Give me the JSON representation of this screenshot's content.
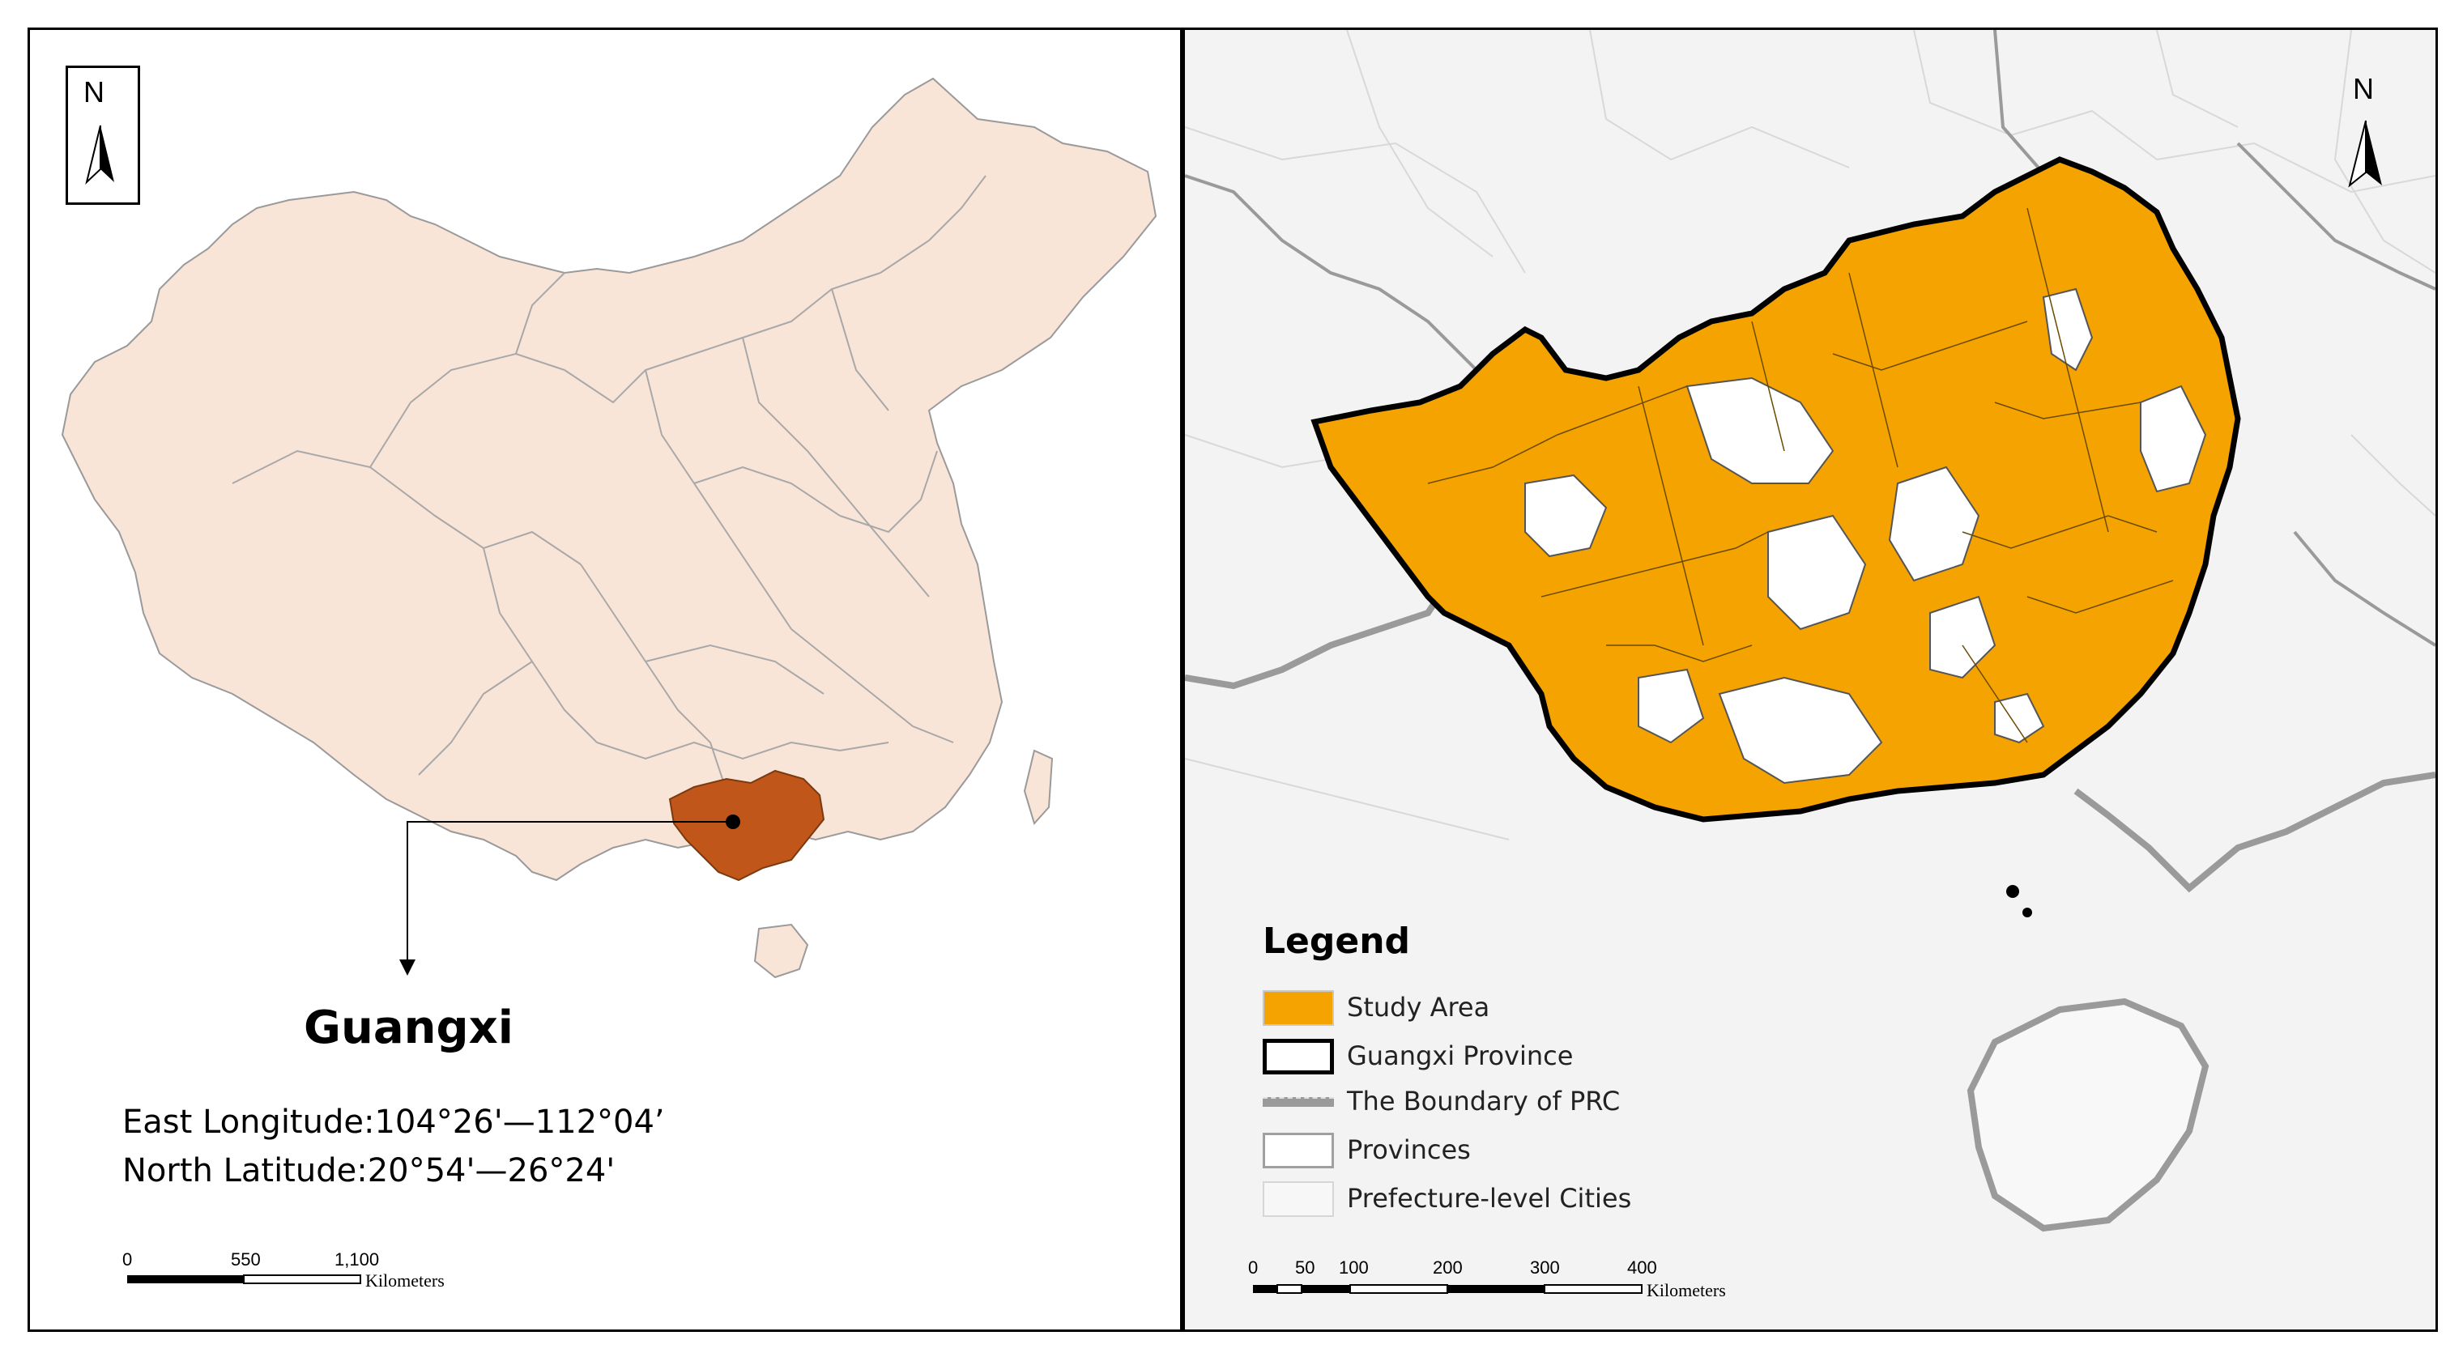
{
  "left_map": {
    "north_label": "N",
    "region_label": "Guangxi",
    "coordinates": [
      "East Longitude:104°26'—112°04’",
      "North Latitude:20°54'—26°24'"
    ],
    "scale": {
      "ticks": [
        "0",
        "550",
        "1,100"
      ],
      "unit": "Kilometers"
    },
    "colors": {
      "china_fill": "#f9e4d8",
      "guangxi_fill": "#c0561a",
      "outline": "#9a9a9a"
    }
  },
  "right_map": {
    "north_label": "N",
    "legend": {
      "title": "Legend",
      "items": [
        {
          "label": "Study Area",
          "swatch": "study-area",
          "color": "#f5a300"
        },
        {
          "label": "Guangxi Province",
          "swatch": "province-outline",
          "color": "#000000"
        },
        {
          "label": "The Boundary of PRC",
          "swatch": "prc-boundary",
          "color": "#9a9a9a"
        },
        {
          "label": "Provinces",
          "swatch": "provinces",
          "color": "#9a9a9a"
        },
        {
          "label": "Prefecture-level Cities",
          "swatch": "cities",
          "color": "#d6d6d6"
        }
      ]
    },
    "scale": {
      "ticks": [
        "0",
        "50",
        "100",
        "200",
        "300",
        "400"
      ],
      "unit": "Kilometers"
    }
  }
}
